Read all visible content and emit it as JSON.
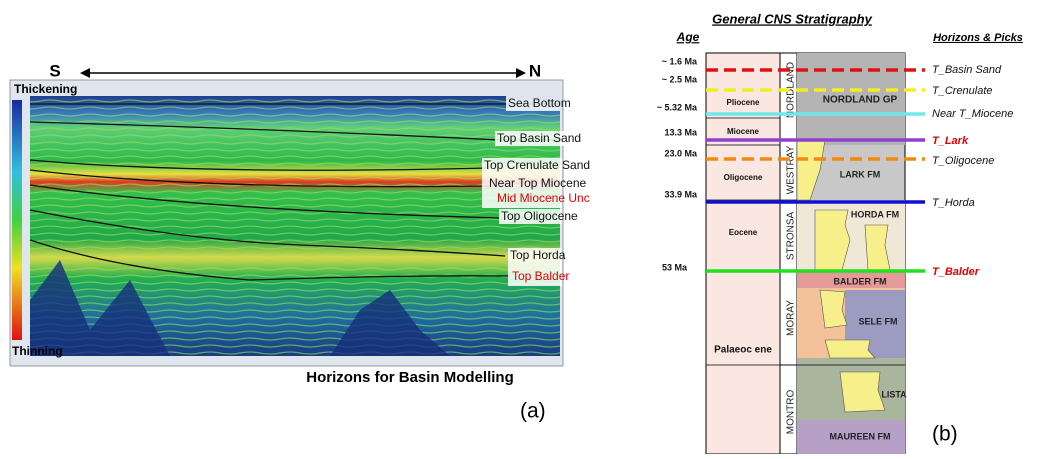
{
  "panel_a": {
    "direction_left": "S",
    "direction_right": "N",
    "scale_top": "Thickening",
    "scale_bottom": "Thinning",
    "horizons": [
      "Sea Bottom",
      "Top Basin Sand",
      "Top Crenulate Sand",
      "Near Top Miocene",
      "Mid Miocene Unc",
      "Top Oligocene",
      "Top Horda",
      "Top Balder"
    ],
    "caption": "Horizons for Basin Modelling",
    "label": "(a)"
  },
  "panel_b": {
    "title": "General CNS Stratigraphy",
    "age_header": "Age",
    "picks_header": "Horizons & Picks",
    "ages": [
      "~ 1.6 Ma",
      "~ 2.5 Ma",
      "~ 5.32 Ma",
      "13.3 Ma",
      "23.0 Ma",
      "33.9 Ma",
      "53 Ma"
    ],
    "picks": [
      "T_Basin Sand",
      "T_Crenulate",
      "Near T_Miocene",
      "T_Lark",
      "T_Oligocene",
      "T_Horda",
      "T_Balder"
    ],
    "epochs": [
      "Pliocene",
      "Miocene",
      "Oligocene",
      "Eocene",
      "Palaeoc ene"
    ],
    "groups": [
      "NORDLAND",
      "WESTRAY",
      "STRONSA",
      "MORAY",
      "MONTRO"
    ],
    "formations": [
      "NORDLAND GP",
      "LARK FM",
      "HORDA FM",
      "BALDER FM",
      "SELE FM",
      "LISTA",
      "MAUREEN FM"
    ],
    "label": "(b)"
  }
}
